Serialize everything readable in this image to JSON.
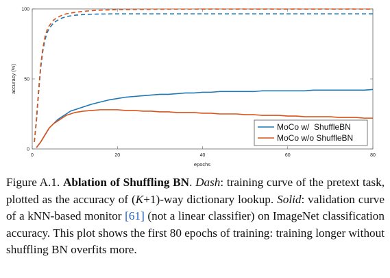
{
  "chart_data": {
    "type": "line",
    "xlabel": "epochs",
    "ylabel": "accuracy (%)",
    "xlim": [
      0,
      80
    ],
    "ylim": [
      0,
      100
    ],
    "xticks": [
      0,
      20,
      40,
      60,
      80
    ],
    "yticks": [
      0,
      50,
      100
    ],
    "grid": false,
    "legend_position": "bottom-right",
    "legend": [
      "MoCo w/  ShuffleBN",
      "MoCo w/o ShuffleBN"
    ],
    "series": [
      {
        "name": "MoCo w/  ShuffleBN",
        "style": "solid",
        "color": "#1f77b4",
        "x": [
          1,
          2,
          3,
          4,
          5,
          6,
          7,
          8,
          9,
          10,
          12,
          14,
          16,
          18,
          20,
          22,
          24,
          26,
          28,
          30,
          32,
          34,
          36,
          38,
          40,
          42,
          44,
          46,
          48,
          50,
          52,
          54,
          56,
          58,
          60,
          62,
          64,
          66,
          68,
          70,
          72,
          74,
          76,
          78,
          80
        ],
        "y": [
          1,
          5,
          10,
          15,
          18,
          21,
          23,
          25,
          27,
          28,
          30,
          32,
          33.5,
          35,
          36,
          37,
          37.5,
          38,
          38.5,
          39,
          39,
          39.5,
          40,
          40,
          40.5,
          40.5,
          41,
          41,
          41,
          41,
          41,
          41.5,
          41.5,
          41.5,
          41.5,
          41.5,
          41.5,
          42,
          42,
          42,
          42,
          42,
          42,
          42,
          42.5
        ]
      },
      {
        "name": "MoCo w/o ShuffleBN",
        "style": "solid",
        "color": "#d95319",
        "x": [
          1,
          2,
          3,
          4,
          5,
          6,
          7,
          8,
          9,
          10,
          12,
          14,
          16,
          18,
          20,
          22,
          24,
          26,
          28,
          30,
          32,
          34,
          36,
          38,
          40,
          42,
          44,
          46,
          48,
          50,
          52,
          54,
          56,
          58,
          60,
          62,
          64,
          66,
          68,
          70,
          72,
          74,
          76,
          78,
          80
        ],
        "y": [
          1,
          5,
          10,
          15,
          18,
          20,
          22,
          24,
          25,
          26,
          27,
          27.5,
          28,
          28,
          28,
          27.5,
          27.5,
          27,
          27,
          26.5,
          26.5,
          26,
          26,
          26,
          25.5,
          25.5,
          25,
          25,
          25,
          24.5,
          24.5,
          24,
          24,
          24,
          23.5,
          23.5,
          23,
          23,
          23,
          23,
          22.5,
          22.5,
          22.5,
          22,
          22
        ]
      },
      {
        "name": "",
        "style": "dashed",
        "color": "#1f77b4",
        "x": [
          0.5,
          1,
          1.5,
          2,
          2.5,
          3,
          3.5,
          4,
          5,
          6,
          7,
          8,
          10,
          12,
          15,
          20,
          30,
          40,
          50,
          60,
          70,
          80
        ],
        "y": [
          5,
          20,
          40,
          58,
          70,
          78,
          83,
          86,
          90,
          92,
          93.5,
          94.5,
          95.5,
          96,
          96.3,
          96.5,
          96.5,
          96.5,
          96.5,
          96.5,
          96.5,
          96.5
        ]
      },
      {
        "name": "",
        "style": "dashed",
        "color": "#d95319",
        "x": [
          0.5,
          1,
          1.5,
          2,
          2.5,
          3,
          3.5,
          4,
          5,
          6,
          7,
          8,
          10,
          12,
          15,
          20,
          30,
          40,
          50,
          60,
          70,
          80
        ],
        "y": [
          5,
          22,
          42,
          60,
          72,
          80,
          85,
          88,
          92,
          94,
          95.5,
          96.5,
          97.5,
          98.3,
          99,
          99.5,
          99.8,
          99.9,
          99.9,
          99.9,
          99.9,
          99.9
        ]
      }
    ]
  },
  "caption": {
    "prefix": "Figure A.1. ",
    "bold_title": "Ablation of Shuffling BN",
    "sep1": ". ",
    "dash_label": "Dash",
    "dash_text": ": training curve of the pretext task, plotted as the accuracy of (",
    "k_var": "K",
    "dash_text2": "+1)-way dictionary lookup. ",
    "solid_label": "Solid",
    "solid_text": ": validation curve of a kNN-based monitor ",
    "ref": "[61]",
    "rest": " (not a linear classifier) on ImageNet classification accuracy. This plot shows the first 80 epochs of training: training longer without shuffling BN overfits more."
  }
}
